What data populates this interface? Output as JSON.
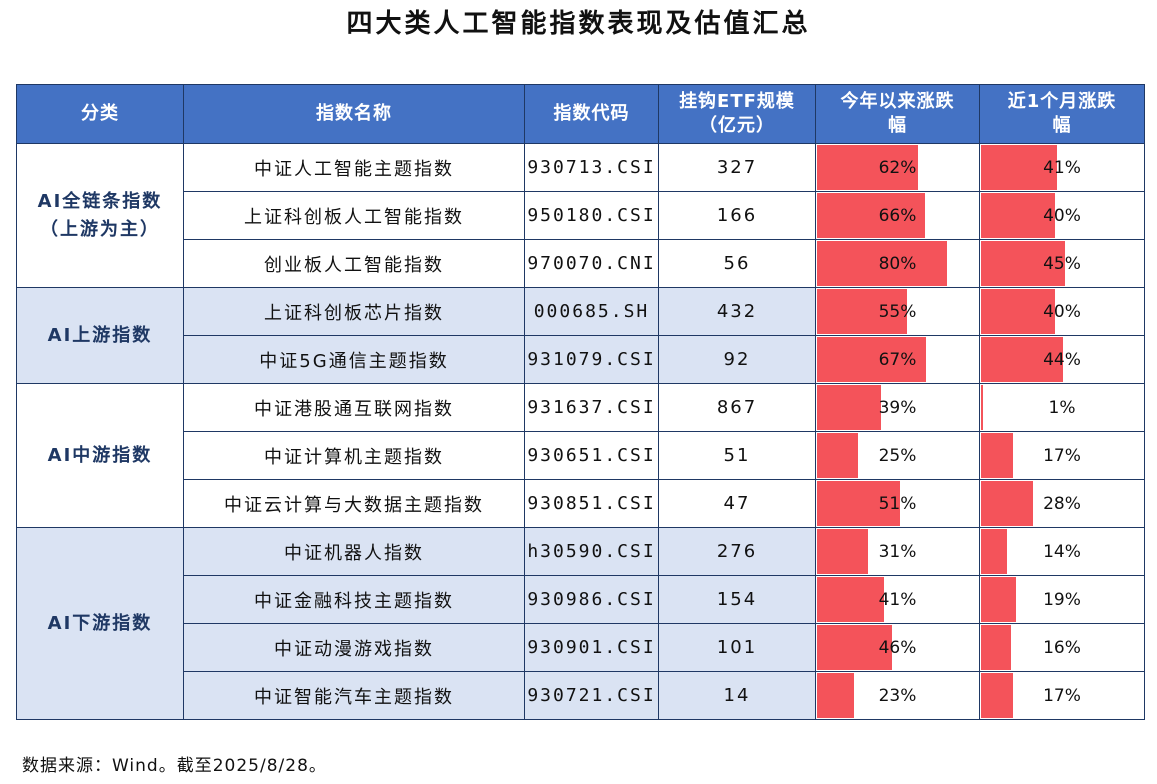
{
  "title": "四大类人工智能指数表现及估值汇总",
  "headers": [
    "分类",
    "指数名称",
    "指数代码",
    "挂钩ETF规模\n（亿元）",
    "今年以来涨跌\n幅",
    "近1个月涨跌\n幅"
  ],
  "groups": [
    {
      "category": "AI全链条指数\n（上游为主）",
      "shaded": false,
      "rows": [
        {
          "name": "中证人工智能主题指数",
          "code": "930713.CSI",
          "etf": "327",
          "ytd": "62%",
          "ytd_value": 62,
          "month": "41%",
          "month_value": 41
        },
        {
          "name": "上证科创板人工智能指数",
          "code": "950180.CSI",
          "etf": "166",
          "ytd": "66%",
          "ytd_value": 66,
          "month": "40%",
          "month_value": 40
        },
        {
          "name": "创业板人工智能指数",
          "code": "970070.CNI",
          "etf": "56",
          "ytd": "80%",
          "ytd_value": 80,
          "month": "45%",
          "month_value": 45
        }
      ]
    },
    {
      "category": "AI上游指数",
      "shaded": true,
      "rows": [
        {
          "name": "上证科创板芯片指数",
          "code": "000685.SH",
          "etf": "432",
          "ytd": "55%",
          "ytd_value": 55,
          "month": "40%",
          "month_value": 40
        },
        {
          "name": "中证5G通信主题指数",
          "code": "931079.CSI",
          "etf": "92",
          "ytd": "67%",
          "ytd_value": 67,
          "month": "44%",
          "month_value": 44
        }
      ]
    },
    {
      "category": "AI中游指数",
      "shaded": false,
      "rows": [
        {
          "name": "中证港股通互联网指数",
          "code": "931637.CSI",
          "etf": "867",
          "ytd": "39%",
          "ytd_value": 39,
          "month": "1%",
          "month_value": 1
        },
        {
          "name": "中证计算机主题指数",
          "code": "930651.CSI",
          "etf": "51",
          "ytd": "25%",
          "ytd_value": 25,
          "month": "17%",
          "month_value": 17
        },
        {
          "name": "中证云计算与大数据主题指数",
          "code": "930851.CSI",
          "etf": "47",
          "ytd": "51%",
          "ytd_value": 51,
          "month": "28%",
          "month_value": 28
        }
      ]
    },
    {
      "category": "AI下游指数",
      "shaded": true,
      "rows": [
        {
          "name": "中证机器人指数",
          "code": "h30590.CSI",
          "etf": "276",
          "ytd": "31%",
          "ytd_value": 31,
          "month": "14%",
          "month_value": 14
        },
        {
          "name": "中证金融科技主题指数",
          "code": "930986.CSI",
          "etf": "154",
          "ytd": "41%",
          "ytd_value": 41,
          "month": "19%",
          "month_value": 19
        },
        {
          "name": "中证动漫游戏指数",
          "code": "930901.CSI",
          "etf": "101",
          "ytd": "46%",
          "ytd_value": 46,
          "month": "16%",
          "month_value": 16
        },
        {
          "name": "中证智能汽车主题指数",
          "code": "930721.CSI",
          "etf": "14",
          "ytd": "23%",
          "ytd_value": 23,
          "month": "17%",
          "month_value": 17
        }
      ]
    }
  ],
  "bar_max": {
    "ytd": 80,
    "month": 45
  },
  "colors": {
    "header": "#4472c4",
    "shade": "#dae3f3",
    "bar": "#f4535a",
    "border": "#1f3864"
  },
  "footer": "数据来源：Wind。截至2025/8/28。"
}
